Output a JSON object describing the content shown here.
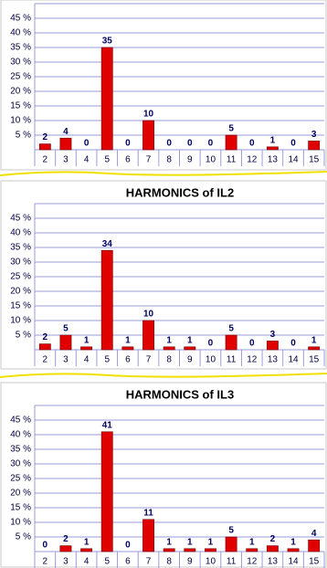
{
  "chart_data": [
    {
      "type": "bar",
      "categories": [
        "2",
        "3",
        "4",
        "5",
        "6",
        "7",
        "8",
        "9",
        "10",
        "11",
        "12",
        "13",
        "14",
        "15"
      ],
      "values": [
        2,
        4,
        0,
        35,
        0,
        10,
        0,
        0,
        0,
        5,
        0,
        1,
        0,
        3
      ],
      "color": "#e00000",
      "ylim": [
        0,
        50
      ],
      "yticks": [
        {
          "value": 5,
          "label": "5 %"
        },
        {
          "value": 10,
          "label": "10 %"
        },
        {
          "value": 15,
          "label": "15 %"
        },
        {
          "value": 20,
          "label": "20 %"
        },
        {
          "value": 25,
          "label": "25 %"
        },
        {
          "value": 30,
          "label": "30 %"
        },
        {
          "value": 35,
          "label": "35 %"
        },
        {
          "value": 40,
          "label": "40 %"
        },
        {
          "value": 45,
          "label": "45 %"
        }
      ],
      "grid": true
    },
    {
      "type": "bar",
      "title": "HARMONICS of IL2",
      "categories": [
        "2",
        "3",
        "4",
        "5",
        "6",
        "7",
        "8",
        "9",
        "10",
        "11",
        "12",
        "13",
        "14",
        "15"
      ],
      "values": [
        2,
        5,
        1,
        34,
        1,
        10,
        1,
        1,
        0,
        5,
        0,
        3,
        0,
        1
      ],
      "color": "#e00000",
      "ylim": [
        0,
        50
      ],
      "yticks": [
        {
          "value": 5,
          "label": "5 %"
        },
        {
          "value": 10,
          "label": "10 %"
        },
        {
          "value": 15,
          "label": "15 %"
        },
        {
          "value": 20,
          "label": "20 %"
        },
        {
          "value": 25,
          "label": "25 %"
        },
        {
          "value": 30,
          "label": "30 %"
        },
        {
          "value": 35,
          "label": "35 %"
        },
        {
          "value": 40,
          "label": "40 %"
        },
        {
          "value": 45,
          "label": "45 %"
        }
      ],
      "grid": true
    },
    {
      "type": "bar",
      "title": "HARMONICS of IL3",
      "categories": [
        "2",
        "3",
        "4",
        "5",
        "6",
        "7",
        "8",
        "9",
        "10",
        "11",
        "12",
        "13",
        "14",
        "15"
      ],
      "values": [
        0,
        2,
        1,
        41,
        0,
        11,
        1,
        1,
        1,
        5,
        1,
        2,
        1,
        4
      ],
      "color": "#e00000",
      "ylim": [
        0,
        50
      ],
      "yticks": [
        {
          "value": 5,
          "label": "5 %"
        },
        {
          "value": 10,
          "label": "10 %"
        },
        {
          "value": 15,
          "label": "15 %"
        },
        {
          "value": 20,
          "label": "20 %"
        },
        {
          "value": 25,
          "label": "25 %"
        },
        {
          "value": 30,
          "label": "30 %"
        },
        {
          "value": 35,
          "label": "35 %"
        },
        {
          "value": 40,
          "label": "40 %"
        },
        {
          "value": 45,
          "label": "45 %"
        }
      ],
      "grid": true
    }
  ]
}
